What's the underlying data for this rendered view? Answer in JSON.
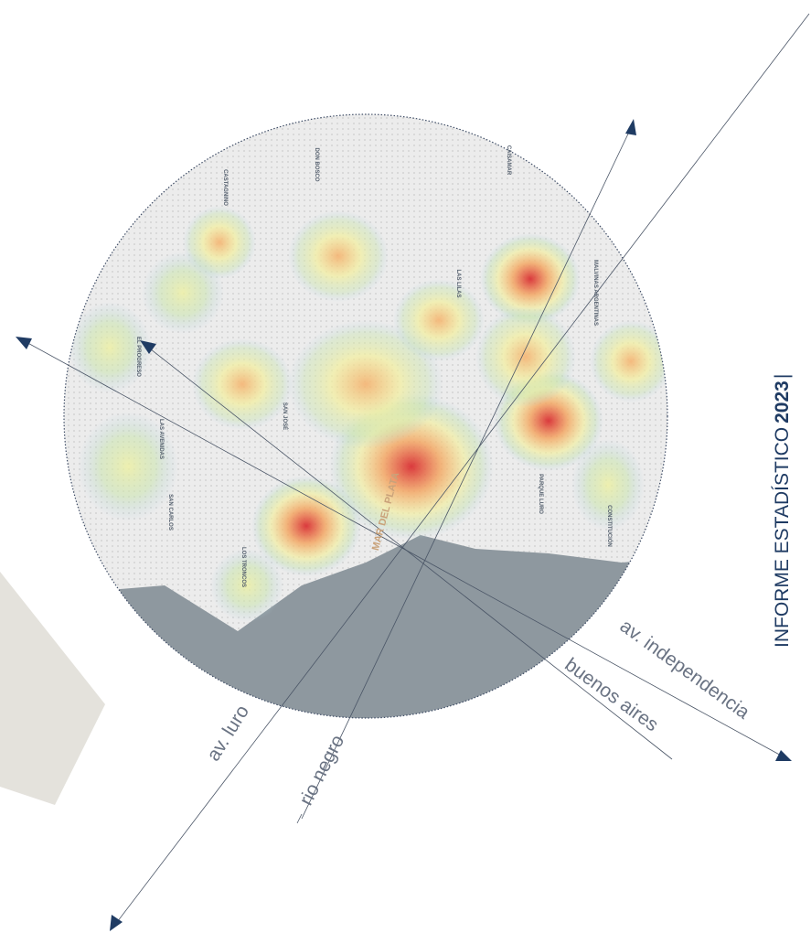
{
  "map": {
    "title": "INFORME ESTADÍSTICO",
    "year": "2023",
    "separator": "|",
    "city": "MAR DEL PLATA",
    "streets": [
      "av. luro",
      "rio negro",
      "buenos aires",
      "av. independencia"
    ],
    "neighborhoods": [
      "LAS AVENIDAS",
      "SAN CARLOS",
      "PARQUE LURO",
      "CONSTITUCIÓN",
      "LAS LILAS",
      "CAISAMAR",
      "DON BOSCO",
      "SAN JOSÉ",
      "EL PROGRESO",
      "LOS TRONCOS",
      "MALVINAS ARGENTINAS",
      "CASTAGNINO"
    ]
  }
}
